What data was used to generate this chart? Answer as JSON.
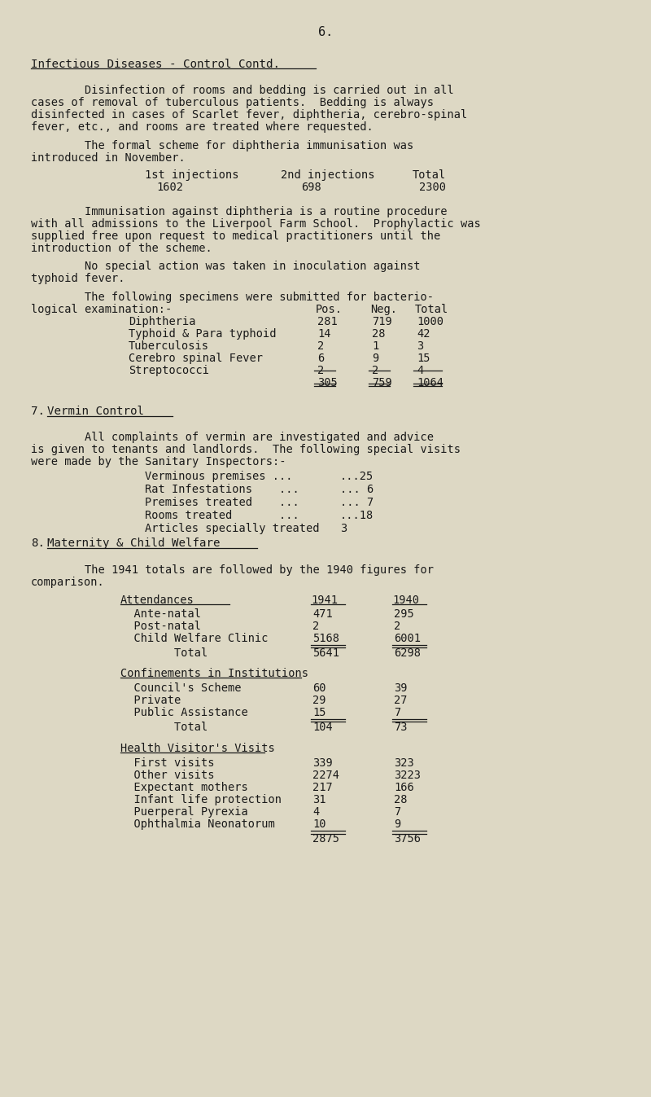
{
  "bg_color": "#ddd8c4",
  "text_color": "#1a1a1a",
  "page_number": "6.",
  "section_header": "Infectious Diseases - Control Contd.",
  "para1_line1": "        Disinfection of rooms and bedding is carried out in all",
  "para1_line2": "cases of removal of tuberculous patients.  Bedding is always",
  "para1_line3": "disinfected in cases of Scarlet fever, diphtheria, cerebro-spinal",
  "para1_line4": "fever, etc., and rooms are treated where requested.",
  "para2_line1": "        The formal scheme for diphtheria immunisation was",
  "para2_line2": "introduced in November.",
  "inj_label1": "1st injections",
  "inj_label2": "2nd injections",
  "inj_label3": "Total",
  "inj_val1": "1602",
  "inj_val2": "698",
  "inj_val3": "2300",
  "para3_line1": "        Immunisation against diphtheria is a routine procedure",
  "para3_line2": "with all admissions to the Liverpool Farm School.  Prophylactic was",
  "para3_line3": "supplied free upon request to medical practitioners until the",
  "para3_line4": "introduction of the scheme.",
  "para4_line1": "        No special action was taken in inoculation against",
  "para4_line2": "typhoid fever.",
  "para5_line1": "        The following specimens were submitted for bacterio-",
  "para5_line2": "logical examination:-",
  "table1_col_headers": [
    "Pos.",
    "Neg.",
    "Total"
  ],
  "table1_rows": [
    [
      "Diphtheria",
      "281",
      "719",
      "1000"
    ],
    [
      "Typhoid & Para typhoid",
      "14",
      "28",
      "42"
    ],
    [
      "Tuberculosis",
      "2",
      "1",
      "3"
    ],
    [
      "Cerebro spinal Fever",
      "6",
      "9",
      "15"
    ],
    [
      "Streptococci",
      "2",
      "2",
      "4"
    ]
  ],
  "table1_totals": [
    "305",
    "759",
    "1064"
  ],
  "para6_line1": "        All complaints of vermin are investigated and advice",
  "para6_line2": "is given to tenants and landlords.  The following special visits",
  "para6_line3": "were made by the Sanitary Inspectors:-",
  "vermin_rows": [
    [
      "Verminous premises ...",
      "...25"
    ],
    [
      "Rat Infestations    ...",
      "... 6"
    ],
    [
      "Premises treated    ...",
      "... 7"
    ],
    [
      "Rooms treated       ...",
      "...18"
    ],
    [
      "Articles specially treated",
      "3"
    ]
  ],
  "para7_line1": "        The 1941 totals are followed by the 1940 figures for",
  "para7_line2": "comparison.",
  "attend_header": "Attendances",
  "attend_year1": "1941",
  "attend_year2": "1940",
  "attend_rows": [
    [
      "  Ante-natal",
      "471",
      "295"
    ],
    [
      "  Post-natal",
      "2",
      "2"
    ],
    [
      "  Child Welfare Clinic",
      "5168",
      "6001"
    ],
    [
      "        Total",
      "5641",
      "6298"
    ]
  ],
  "confine_header": "Confinements in Institutions",
  "confine_rows": [
    [
      "  Council's Scheme",
      "60",
      "39"
    ],
    [
      "  Private",
      "29",
      "27"
    ],
    [
      "  Public Assistance",
      "15",
      "7"
    ],
    [
      "        Total",
      "104",
      "73"
    ]
  ],
  "health_header": "Health Visitor's Visits",
  "health_rows": [
    [
      "  First visits",
      "339",
      "323"
    ],
    [
      "  Other visits",
      "2274",
      "3223"
    ],
    [
      "  Expectant mothers",
      "217",
      "166"
    ],
    [
      "  Infant life protection",
      "31",
      "28"
    ],
    [
      "  Puerperal Pyrexia",
      "4",
      "7"
    ],
    [
      "  Ophthalmia Neonatorum",
      "10",
      "9"
    ],
    [
      "",
      "2875",
      "3756"
    ]
  ]
}
